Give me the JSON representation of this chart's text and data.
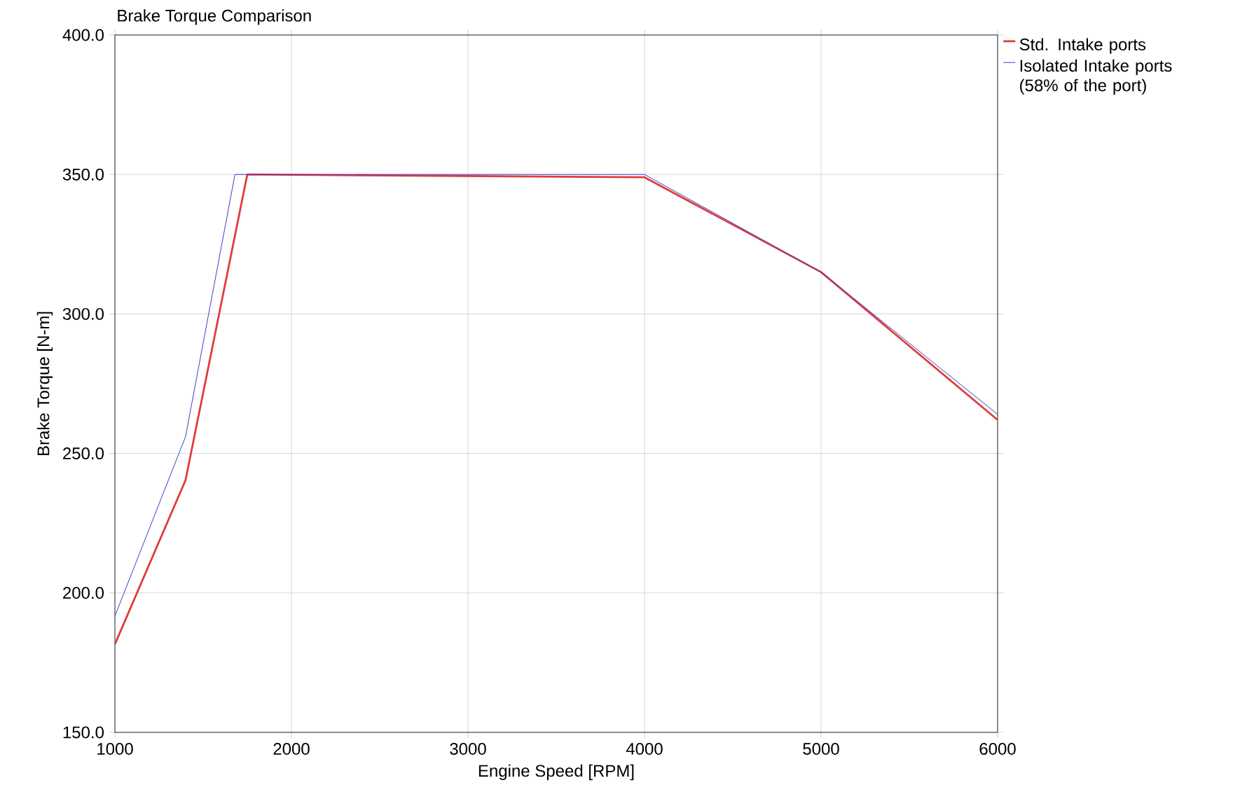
{
  "chart_data": {
    "type": "line",
    "title": "Brake Torque Comparison",
    "xlabel": "Engine Speed [RPM]",
    "ylabel": "Brake Torque [N-m]",
    "xlim": [
      1000,
      6000
    ],
    "xticks": [
      1000,
      2000,
      3000,
      4000,
      5000,
      6000
    ],
    "ylim": [
      150,
      400
    ],
    "yticks": [
      {
        "value": 150,
        "label": "150.0"
      },
      {
        "value": 200,
        "label": "200.0"
      },
      {
        "value": 250,
        "label": "250.0"
      },
      {
        "value": 300,
        "label": "300.0"
      },
      {
        "value": 350,
        "label": "350.0"
      },
      {
        "value": 400,
        "label": "400.0"
      }
    ],
    "grid": true,
    "legend": "top right",
    "marker": "none",
    "line_style": "solid",
    "series": [
      {
        "name": "Std. Intake ports",
        "color": "#e03c3c",
        "x": [
          1000,
          1400,
          1750,
          4000,
          5000,
          6000
        ],
        "values": [
          181.6,
          240.4,
          350,
          349,
          315,
          262
        ]
      },
      {
        "name": "Isolated Intake ports (58% of the port)",
        "color": "#3c3cc8",
        "x": [
          1000,
          1400,
          1680,
          1750,
          4000,
          5000,
          6000
        ],
        "values": [
          191.7,
          256,
          350,
          350,
          350,
          315,
          264
        ]
      }
    ]
  }
}
